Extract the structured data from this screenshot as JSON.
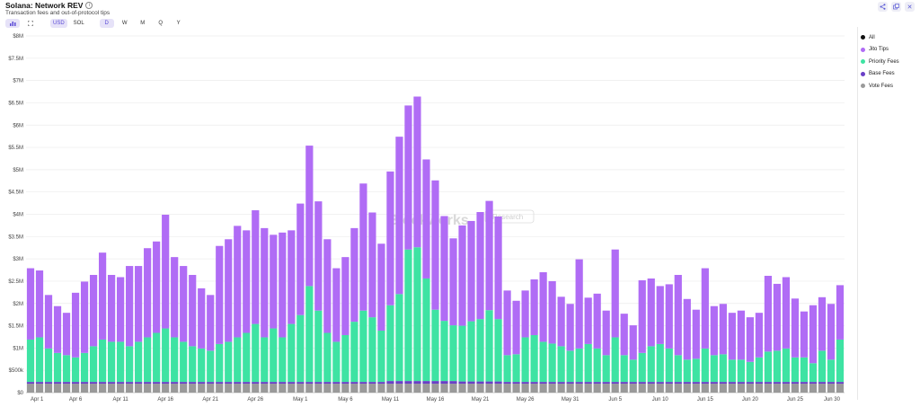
{
  "header": {
    "title": "Solana: Network REV",
    "info_icon": "info-icon",
    "subtitle": "Transaction fees and out-of-protocol tips"
  },
  "toolbar": {
    "chart_type_icon": "bar-chart-icon",
    "expand_icon": "expand-icon",
    "currency_options": [
      "USD",
      "SOL"
    ],
    "selected_currency": "USD",
    "interval_options": [
      "D",
      "W",
      "M",
      "Q",
      "Y"
    ],
    "selected_interval": "D"
  },
  "top_right": {
    "share_icon": "share-icon",
    "duplicate_icon": "duplicate-icon",
    "close_icon": "close-icon"
  },
  "watermark": {
    "brand": "Blockworks",
    "tag": "Research"
  },
  "legend": [
    {
      "label": "All",
      "color": "#111111"
    },
    {
      "label": "Jito Tips",
      "color": "#b06cf5"
    },
    {
      "label": "Priority Fees",
      "color": "#3ee3a3"
    },
    {
      "label": "Base Fees",
      "color": "#6a3fc7"
    },
    {
      "label": "Vote Fees",
      "color": "#9a9a9a"
    }
  ],
  "chart_data": {
    "type": "bar",
    "stacked": true,
    "title": "Solana: Network REV",
    "subtitle": "Transaction fees and out-of-protocol tips",
    "xlabel": "",
    "ylabel": "",
    "ylim": [
      0,
      8000000
    ],
    "y_ticks": [
      0,
      500000,
      1000000,
      1500000,
      2000000,
      2500000,
      3000000,
      3500000,
      4000000,
      4500000,
      5000000,
      5500000,
      6000000,
      6500000,
      7000000,
      7500000,
      8000000
    ],
    "y_tick_labels": [
      "$0",
      "$500k",
      "$1M",
      "$1.5M",
      "$2M",
      "$2.5M",
      "$3M",
      "$3.5M",
      "$4M",
      "$4.5M",
      "$5M",
      "$5.5M",
      "$6M",
      "$6.5M",
      "$7M",
      "$7.5M",
      "$8M"
    ],
    "x_tick_labels": [
      {
        "index": 0,
        "label": "Apr 1"
      },
      {
        "index": 5,
        "label": "Apr 6"
      },
      {
        "index": 10,
        "label": "Apr 11"
      },
      {
        "index": 15,
        "label": "Apr 16"
      },
      {
        "index": 20,
        "label": "Apr 21"
      },
      {
        "index": 25,
        "label": "Apr 26"
      },
      {
        "index": 30,
        "label": "May 1"
      },
      {
        "index": 35,
        "label": "May 6"
      },
      {
        "index": 40,
        "label": "May 11"
      },
      {
        "index": 45,
        "label": "May 16"
      },
      {
        "index": 50,
        "label": "May 21"
      },
      {
        "index": 55,
        "label": "May 26"
      },
      {
        "index": 60,
        "label": "May 31"
      },
      {
        "index": 65,
        "label": "Jun 5"
      },
      {
        "index": 70,
        "label": "Jun 10"
      },
      {
        "index": 75,
        "label": "Jun 15"
      },
      {
        "index": 80,
        "label": "Jun 20"
      },
      {
        "index": 85,
        "label": "Jun 25"
      },
      {
        "index": 90,
        "label": "Jun 30"
      }
    ],
    "grid": true,
    "legend_position": "right",
    "x_start": "Apr 1",
    "x_end": "Jun 30",
    "series": [
      {
        "name": "Vote Fees",
        "color": "#9a9a9a",
        "values": [
          200000,
          200000,
          200000,
          200000,
          200000,
          200000,
          200000,
          200000,
          200000,
          200000,
          200000,
          200000,
          200000,
          200000,
          200000,
          200000,
          200000,
          200000,
          200000,
          200000,
          200000,
          200000,
          200000,
          200000,
          200000,
          200000,
          200000,
          200000,
          200000,
          200000,
          200000,
          200000,
          200000,
          200000,
          200000,
          200000,
          200000,
          200000,
          200000,
          200000,
          200000,
          200000,
          200000,
          200000,
          200000,
          200000,
          200000,
          200000,
          200000,
          200000,
          200000,
          200000,
          200000,
          200000,
          200000,
          200000,
          200000,
          200000,
          200000,
          200000,
          200000,
          200000,
          200000,
          200000,
          200000,
          200000,
          200000,
          200000,
          200000,
          200000,
          200000,
          200000,
          200000,
          200000,
          200000,
          200000,
          200000,
          200000,
          200000,
          200000,
          200000,
          200000,
          200000,
          200000,
          200000,
          200000,
          200000,
          200000,
          200000,
          200000,
          200000
        ]
      },
      {
        "name": "Base Fees",
        "color": "#6a3fc7",
        "values": [
          40000,
          40000,
          40000,
          40000,
          40000,
          40000,
          40000,
          40000,
          40000,
          40000,
          40000,
          40000,
          40000,
          40000,
          40000,
          40000,
          40000,
          40000,
          40000,
          40000,
          40000,
          40000,
          40000,
          40000,
          40000,
          40000,
          40000,
          40000,
          40000,
          40000,
          40000,
          40000,
          40000,
          40000,
          40000,
          40000,
          40000,
          40000,
          40000,
          40000,
          60000,
          60000,
          60000,
          60000,
          60000,
          60000,
          60000,
          60000,
          50000,
          50000,
          50000,
          50000,
          50000,
          40000,
          40000,
          40000,
          40000,
          40000,
          40000,
          40000,
          40000,
          40000,
          40000,
          40000,
          40000,
          40000,
          40000,
          40000,
          40000,
          40000,
          40000,
          40000,
          40000,
          40000,
          40000,
          40000,
          40000,
          40000,
          40000,
          40000,
          40000,
          40000,
          40000,
          40000,
          40000,
          40000,
          40000,
          40000,
          40000,
          40000,
          40000
        ]
      },
      {
        "name": "Priority Fees",
        "color": "#3ee3a3",
        "values": [
          950000,
          1000000,
          750000,
          650000,
          600000,
          550000,
          650000,
          800000,
          950000,
          900000,
          900000,
          800000,
          900000,
          1000000,
          1100000,
          1200000,
          1000000,
          900000,
          800000,
          750000,
          700000,
          850000,
          900000,
          1000000,
          1100000,
          1300000,
          1000000,
          1200000,
          1000000,
          1300000,
          1500000,
          2150000,
          1600000,
          1100000,
          900000,
          1050000,
          1350000,
          1600000,
          1450000,
          1150000,
          1700000,
          1950000,
          2950000,
          3000000,
          2300000,
          1600000,
          1350000,
          1250000,
          1250000,
          1350000,
          1400000,
          1600000,
          1400000,
          600000,
          620000,
          1000000,
          1050000,
          900000,
          860000,
          800000,
          700000,
          750000,
          850000,
          750000,
          600000,
          1000000,
          600000,
          500000,
          650000,
          800000,
          850000,
          750000,
          600000,
          500000,
          520000,
          750000,
          600000,
          620000,
          500000,
          500000,
          450000,
          550000,
          680000,
          700000,
          750000,
          550000,
          550000,
          420000,
          700000,
          500000,
          950000
        ]
      },
      {
        "name": "Jito Tips",
        "color": "#b06cf5",
        "values": [
          1600000,
          1500000,
          1200000,
          1050000,
          950000,
          1450000,
          1600000,
          1600000,
          1950000,
          1500000,
          1450000,
          1800000,
          1700000,
          2000000,
          2050000,
          2550000,
          1800000,
          1700000,
          1600000,
          1350000,
          1250000,
          2200000,
          2300000,
          2500000,
          2300000,
          2550000,
          2450000,
          2100000,
          2350000,
          2100000,
          2500000,
          3150000,
          2450000,
          2100000,
          1650000,
          1750000,
          2100000,
          2850000,
          2350000,
          1950000,
          3000000,
          3530000,
          3230000,
          3380000,
          2670000,
          2900000,
          2350000,
          1950000,
          2250000,
          2250000,
          2400000,
          2450000,
          2300000,
          1450000,
          1200000,
          1050000,
          1250000,
          1560000,
          1400000,
          1110000,
          1050000,
          2000000,
          1040000,
          1230000,
          1000000,
          1970000,
          930000,
          770000,
          1630000,
          1520000,
          1300000,
          1440000,
          1800000,
          1360000,
          1100000,
          1800000,
          1100000,
          1130000,
          1050000,
          1100000,
          1000000,
          1000000,
          1700000,
          1500000,
          1600000,
          1320000,
          1030000,
          1300000,
          1200000,
          1250000,
          1220000
        ]
      }
    ]
  }
}
